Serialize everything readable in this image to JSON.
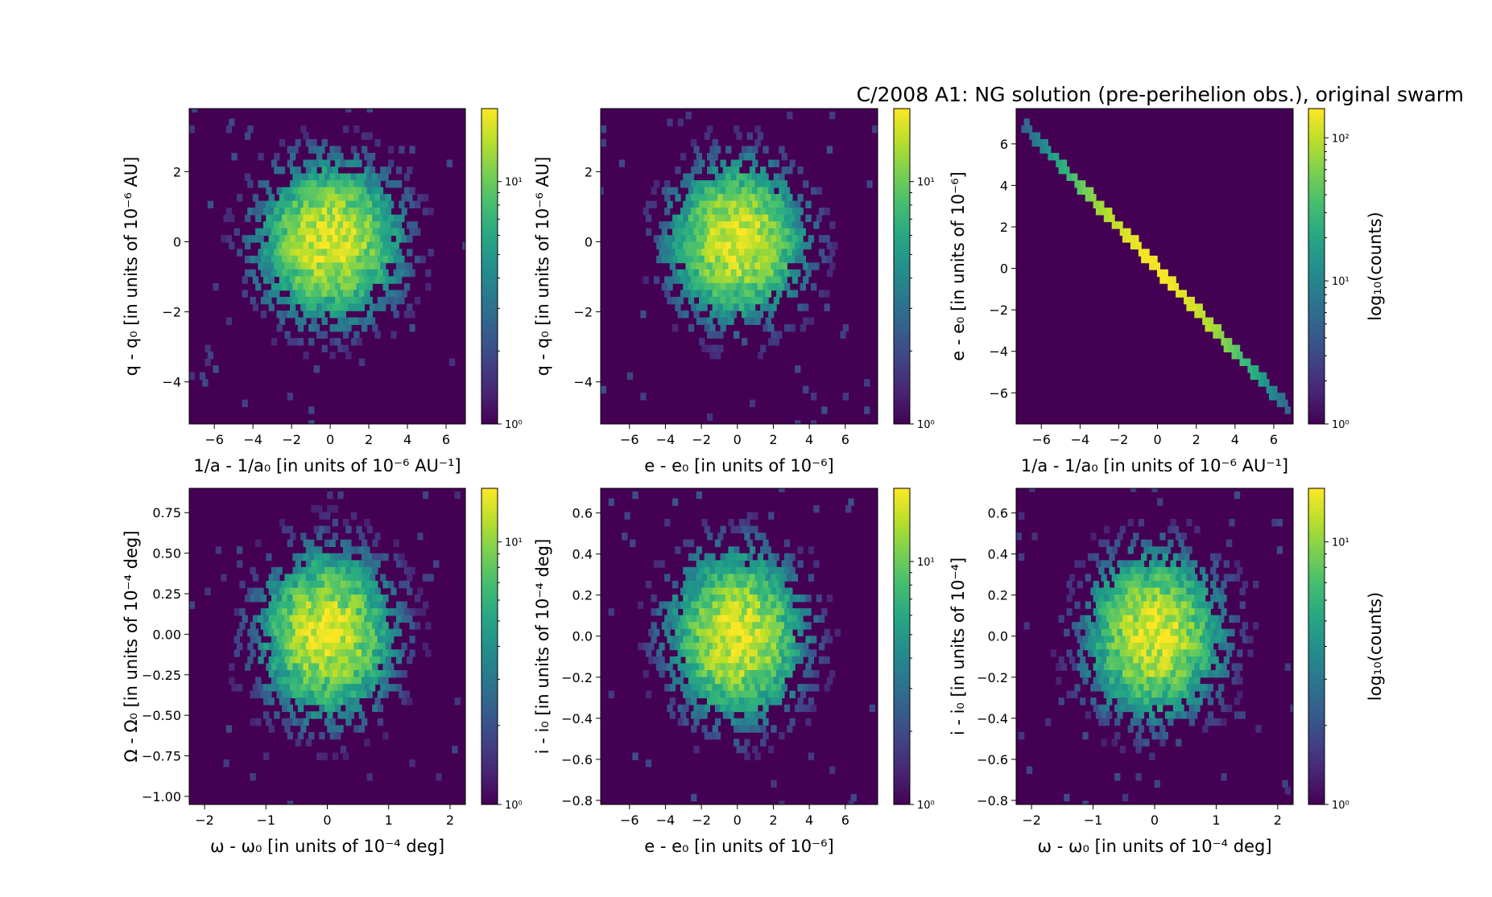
{
  "title": "C/2008 A1: NG solution (pre-perihelion obs.), original swarm",
  "colormap": "viridis",
  "colors": {
    "background": "#440154",
    "low": "#440154",
    "high": "#fde725"
  },
  "chart_data": [
    {
      "type": "heatmap",
      "binning": "hexbin",
      "xlabel": "1/a - 1/a₀ [in units of 10⁻⁶ AU⁻¹]",
      "ylabel": "q - q₀ [in units of 10⁻⁶ AU]",
      "xlim": [
        -7.3,
        7.0
      ],
      "ylim": [
        -5.2,
        3.8
      ],
      "xticks": [
        -6,
        -4,
        -2,
        0,
        2,
        4,
        6
      ],
      "yticks": [
        -4,
        -2,
        0,
        2
      ],
      "colorbar": {
        "scale": "log",
        "range": [
          1,
          20
        ],
        "ticks": [
          1,
          10
        ],
        "tick_labels": [
          "10⁰",
          "10¹"
        ],
        "label": ""
      },
      "distribution": {
        "kind": "gaussian",
        "center": [
          0,
          0
        ],
        "spread": [
          2.0,
          1.2
        ],
        "correlation": 0
      }
    },
    {
      "type": "heatmap",
      "binning": "hexbin",
      "xlabel": "e - e₀ [in units of 10⁻⁶]",
      "ylabel": "q - q₀ [in units of 10⁻⁶ AU]",
      "xlim": [
        -7.6,
        7.8
      ],
      "ylim": [
        -5.2,
        3.8
      ],
      "xticks": [
        -6,
        -4,
        -2,
        0,
        2,
        4,
        6
      ],
      "yticks": [
        -4,
        -2,
        0,
        2
      ],
      "colorbar": {
        "scale": "log",
        "range": [
          1,
          20
        ],
        "ticks": [
          1,
          10
        ],
        "tick_labels": [
          "10⁰",
          "10¹"
        ],
        "label": ""
      },
      "distribution": {
        "kind": "gaussian",
        "center": [
          0,
          0
        ],
        "spread": [
          2.0,
          1.2
        ],
        "correlation": 0
      }
    },
    {
      "type": "heatmap",
      "binning": "hexbin",
      "xlabel": "1/a - 1/a₀ [in units of 10⁻⁶ AU⁻¹]",
      "ylabel": "e - e₀ [in units of 10⁻⁶]",
      "xlim": [
        -7.3,
        7.0
      ],
      "ylim": [
        -7.5,
        7.7
      ],
      "xticks": [
        -6,
        -4,
        -2,
        0,
        2,
        4,
        6
      ],
      "yticks": [
        -6,
        -4,
        -2,
        0,
        2,
        4,
        6
      ],
      "colorbar": {
        "scale": "log",
        "range": [
          1,
          160
        ],
        "ticks": [
          1,
          10,
          100
        ],
        "tick_labels": [
          "10⁰",
          "10¹",
          "10²"
        ],
        "label": "log₁₀(counts)"
      },
      "distribution": {
        "kind": "linear",
        "relation": "y = -x",
        "x_range": [
          -7.0,
          6.8
        ],
        "spread": 2.0
      }
    },
    {
      "type": "heatmap",
      "binning": "hexbin",
      "xlabel": "ω - ω₀ [in units of 10⁻⁴ deg]",
      "ylabel": "Ω - Ω₀ [in units of 10⁻⁴ deg]",
      "xlim": [
        -2.25,
        2.25
      ],
      "ylim": [
        -1.05,
        0.9
      ],
      "xticks": [
        -2,
        -1,
        0,
        1,
        2
      ],
      "yticks": [
        -1.0,
        -0.75,
        -0.5,
        -0.25,
        0.0,
        0.25,
        0.5,
        0.75
      ],
      "ytick_labels": [
        "−1.00",
        "−0.75",
        "−0.50",
        "−0.25",
        "0.00",
        "0.25",
        "0.50",
        "0.75"
      ],
      "colorbar": {
        "scale": "log",
        "range": [
          1,
          16
        ],
        "ticks": [
          1,
          10
        ],
        "tick_labels": [
          "10⁰",
          "10¹"
        ],
        "label": ""
      },
      "distribution": {
        "kind": "gaussian",
        "center": [
          0,
          0
        ],
        "spread": [
          0.6,
          0.28
        ],
        "correlation": 0
      }
    },
    {
      "type": "heatmap",
      "binning": "hexbin",
      "xlabel": "e - e₀ [in units of 10⁻⁶]",
      "ylabel": "i - i₀ [in units of 10⁻⁴ deg]",
      "xlim": [
        -7.6,
        7.8
      ],
      "ylim": [
        -0.82,
        0.72
      ],
      "xticks": [
        -6,
        -4,
        -2,
        0,
        2,
        4,
        6
      ],
      "yticks": [
        -0.8,
        -0.6,
        -0.4,
        -0.2,
        0.0,
        0.2,
        0.4,
        0.6
      ],
      "ytick_labels": [
        "−0.8",
        "−0.6",
        "−0.4",
        "−0.2",
        "0.0",
        "0.2",
        "0.4",
        "0.6"
      ],
      "colorbar": {
        "scale": "log",
        "range": [
          1,
          20
        ],
        "ticks": [
          1,
          10
        ],
        "tick_labels": [
          "10⁰",
          "10¹"
        ],
        "label": ""
      },
      "distribution": {
        "kind": "gaussian",
        "center": [
          0,
          0
        ],
        "spread": [
          2.0,
          0.22
        ],
        "correlation": 0
      }
    },
    {
      "type": "heatmap",
      "binning": "hexbin",
      "xlabel": "ω - ω₀ [in units of 10⁻⁴ deg]",
      "ylabel": "i - i₀ [in units of 10⁻⁴]",
      "xlim": [
        -2.25,
        2.25
      ],
      "ylim": [
        -0.82,
        0.72
      ],
      "xticks": [
        -2,
        -1,
        0,
        1,
        2
      ],
      "yticks": [
        -0.8,
        -0.6,
        -0.4,
        -0.2,
        0.0,
        0.2,
        0.4,
        0.6
      ],
      "ytick_labels": [
        "−0.8",
        "−0.6",
        "−0.4",
        "−0.2",
        "0.0",
        "0.2",
        "0.4",
        "0.6"
      ],
      "colorbar": {
        "scale": "log",
        "range": [
          1,
          16
        ],
        "ticks": [
          1,
          10
        ],
        "tick_labels": [
          "10⁰",
          "10¹"
        ],
        "label": "log₁₀(counts)"
      },
      "distribution": {
        "kind": "gaussian",
        "center": [
          0,
          0
        ],
        "spread": [
          0.6,
          0.22
        ],
        "correlation": 0
      }
    }
  ]
}
